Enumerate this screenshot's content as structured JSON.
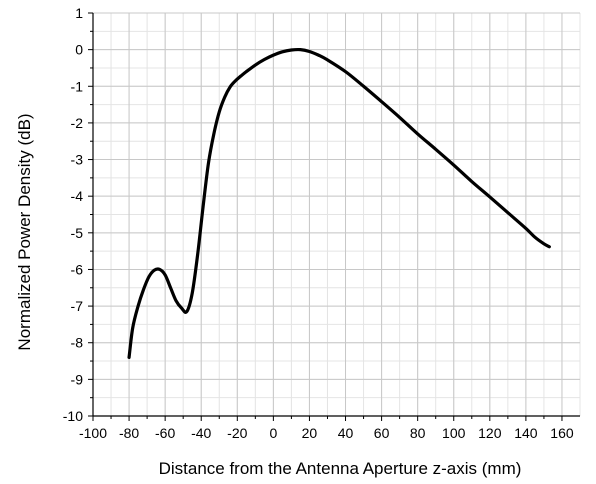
{
  "chart_data": {
    "type": "line",
    "title": "",
    "xlabel": "Distance from the Antenna Aperture z-axis (mm)",
    "ylabel": "Normalized Power Density (dB)",
    "xlim": [
      -100,
      170
    ],
    "ylim": [
      -10,
      1
    ],
    "xticks": [
      -100,
      -80,
      -60,
      -40,
      -20,
      0,
      20,
      40,
      60,
      80,
      100,
      120,
      140,
      160
    ],
    "yticks": [
      1,
      0,
      -1,
      -2,
      -3,
      -4,
      -5,
      -6,
      -7,
      -8,
      -9,
      -10
    ],
    "grid": true,
    "legend": "none",
    "line_color": "#000000",
    "series": [
      {
        "x": [
          -80,
          -78,
          -75,
          -72,
          -69,
          -66,
          -63,
          -60,
          -57,
          -54,
          -51,
          -48,
          -45,
          -42,
          -39,
          -36,
          -33,
          -30,
          -27,
          -24,
          -21,
          -18,
          -15,
          -10,
          -5,
          0,
          5,
          10,
          15,
          20,
          25,
          30,
          40,
          50,
          60,
          70,
          80,
          90,
          100,
          110,
          120,
          130,
          140,
          145,
          150,
          153
        ],
        "y": [
          -8.4,
          -7.6,
          -7.0,
          -6.55,
          -6.2,
          -6.02,
          -6.0,
          -6.15,
          -6.5,
          -6.85,
          -7.05,
          -7.15,
          -6.65,
          -5.6,
          -4.3,
          -3.1,
          -2.3,
          -1.7,
          -1.3,
          -1.02,
          -0.85,
          -0.72,
          -0.6,
          -0.42,
          -0.27,
          -0.15,
          -0.06,
          -0.01,
          0.0,
          -0.05,
          -0.15,
          -0.28,
          -0.6,
          -1.0,
          -1.42,
          -1.85,
          -2.3,
          -2.72,
          -3.15,
          -3.6,
          -4.02,
          -4.45,
          -4.88,
          -5.12,
          -5.3,
          -5.38
        ]
      }
    ]
  }
}
